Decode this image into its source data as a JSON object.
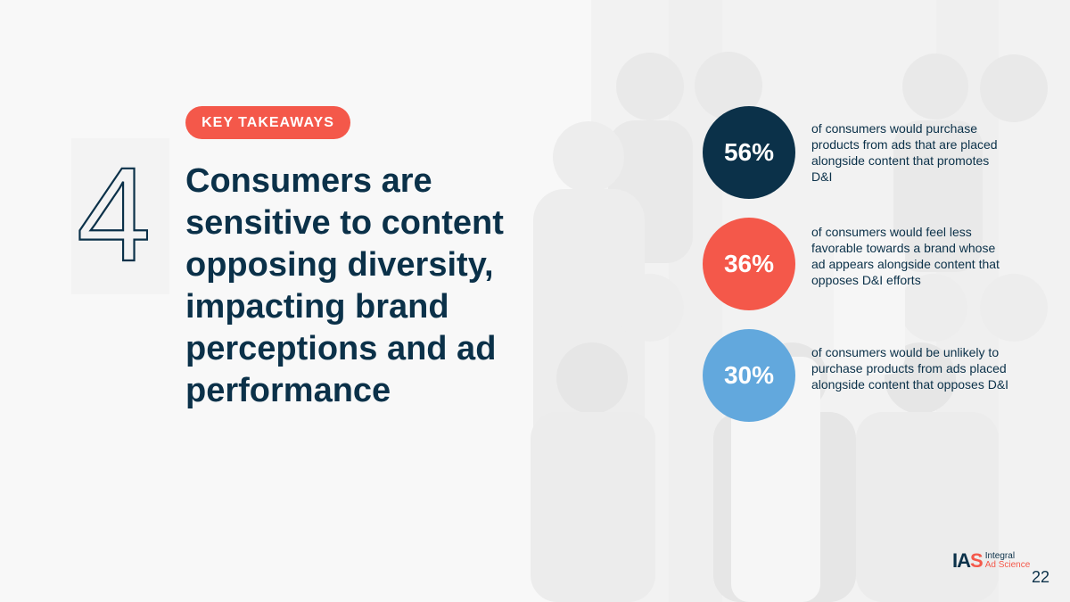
{
  "slide": {
    "number": "4",
    "tag": "KEY TAKEAWAYS",
    "headline": "Consumers are sensitive to content opposing diversity, impacting brand perceptions and ad performance",
    "page_number": "22"
  },
  "stats": [
    {
      "value": "56%",
      "color": "#0b3149",
      "text": "of consumers would purchase products from ads that are placed alongside content that promotes D&I"
    },
    {
      "value": "36%",
      "color": "#f4584a",
      "text": "of consumers would feel less favorable towards a brand whose ad appears alongside content that opposes D&I efforts"
    },
    {
      "value": "30%",
      "color": "#62a8dd",
      "text": "of consumers would be unlikely to purchase products from ads placed alongside content that opposes D&I"
    }
  ],
  "logo": {
    "mark_prefix": "IA",
    "mark_suffix": "S",
    "line1": "Integral",
    "line2": "Ad Science"
  },
  "colors": {
    "navy": "#0b3149",
    "coral": "#f4584a",
    "sky": "#62a8dd",
    "background": "#f8f8f8"
  }
}
